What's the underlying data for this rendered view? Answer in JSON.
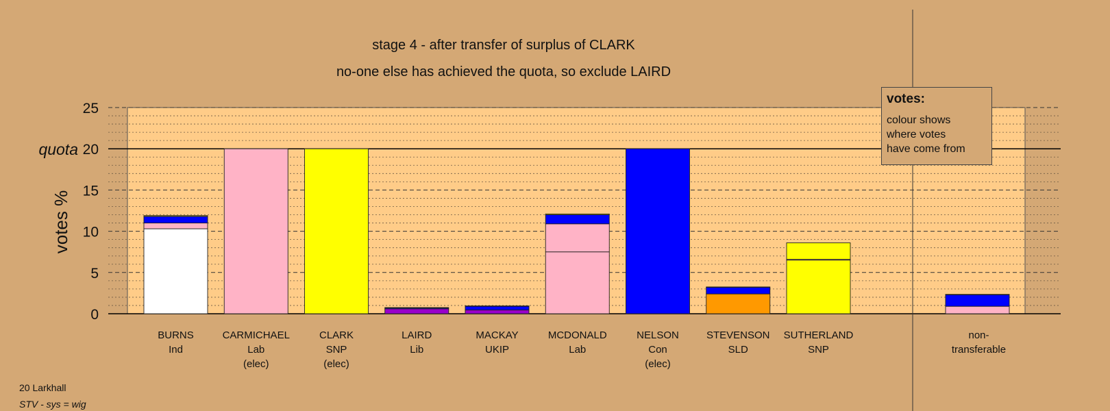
{
  "chart_data": {
    "type": "bar",
    "stacked": true,
    "title": "stage 4 - after transfer of surplus of CLARK",
    "subtitle": "no-one else has achieved the quota, so exclude LAIRD",
    "ylabel": "votes %",
    "ylim": [
      0,
      25
    ],
    "yticks": [
      0,
      5,
      10,
      15,
      20,
      25
    ],
    "quota": 20,
    "quota_label": "quota",
    "grid": true,
    "candidates": [
      {
        "name": "BURNS",
        "party": "Ind",
        "note": "",
        "segments": [
          {
            "color": "#ffffff",
            "value": 10.3
          },
          {
            "color": "#ffb3c6",
            "value": 0.7
          },
          {
            "color": "#0000ff",
            "value": 0.8
          },
          {
            "color": "#ffff00",
            "value": 0.1
          }
        ]
      },
      {
        "name": "CARMICHAEL",
        "party": "Lab",
        "note": "(elec)",
        "segments": [
          {
            "color": "#ffb3c6",
            "value": 20
          }
        ]
      },
      {
        "name": "CLARK",
        "party": "SNP",
        "note": "(elec)",
        "segments": [
          {
            "color": "#ffff00",
            "value": 20
          }
        ]
      },
      {
        "name": "LAIRD",
        "party": "Lib",
        "note": "",
        "segments": [
          {
            "color": "#9900cc",
            "value": 0.6
          },
          {
            "color": "#0000ff",
            "value": 0.1
          },
          {
            "color": "#ffff00",
            "value": 0.05
          }
        ]
      },
      {
        "name": "MACKAY",
        "party": "UKIP",
        "note": "",
        "segments": [
          {
            "color": "#9900cc",
            "value": 0.45
          },
          {
            "color": "#0000ff",
            "value": 0.45
          },
          {
            "color": "#ffff00",
            "value": 0.05
          }
        ]
      },
      {
        "name": "MCDONALD",
        "party": "Lab",
        "note": "",
        "segments": [
          {
            "color": "#ffb3c6",
            "value": 7.5
          },
          {
            "color": "#ffb3c6",
            "value": 3.4
          },
          {
            "color": "#0000ff",
            "value": 1.1
          },
          {
            "color": "#ffff00",
            "value": 0.1
          }
        ]
      },
      {
        "name": "NELSON",
        "party": "Con",
        "note": "(elec)",
        "segments": [
          {
            "color": "#0000ff",
            "value": 20
          }
        ]
      },
      {
        "name": "STEVENSON",
        "party": "SLD",
        "note": "",
        "segments": [
          {
            "color": "#ff9900",
            "value": 2.4
          },
          {
            "color": "#0000ff",
            "value": 0.8
          },
          {
            "color": "#ffff00",
            "value": 0.05
          }
        ]
      },
      {
        "name": "SUTHERLAND",
        "party": "SNP",
        "note": "",
        "segments": [
          {
            "color": "#ffff00",
            "value": 6.5
          },
          {
            "color": "#ffb3c6",
            "value": 0.1
          },
          {
            "color": "#ffff00",
            "value": 2.0
          }
        ]
      }
    ],
    "nontransferable": {
      "label_line1": "non-",
      "label_line2": "transferable",
      "segments": [
        {
          "color": "#ffb3c6",
          "value": 0.9
        },
        {
          "color": "#0000ff",
          "value": 1.4
        },
        {
          "color": "#ffff00",
          "value": 0.05
        }
      ]
    }
  },
  "legend": {
    "title": "votes:",
    "lines": [
      "colour shows",
      "where votes",
      "have come from"
    ]
  },
  "footer": {
    "line1": "20 Larkhall",
    "line2": "STV - sys = wig"
  },
  "colors": {
    "background": "#d4a875",
    "plot_area": "#ffcc88"
  }
}
